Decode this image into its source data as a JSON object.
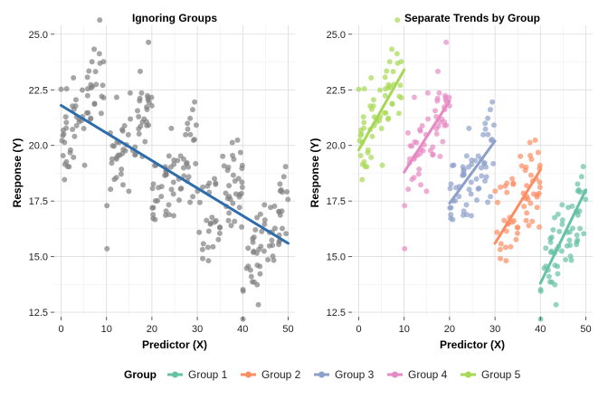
{
  "chart_data": [
    {
      "type": "scatter",
      "title": "Ignoring Groups",
      "xlabel": "Predictor (X)",
      "ylabel": "Response (Y)",
      "xlim": [
        -1.5,
        51.5
      ],
      "ylim": [
        12.3,
        25.4
      ],
      "x_ticks": [
        0,
        10,
        20,
        30,
        40,
        50
      ],
      "y_ticks": [
        12.5,
        15.0,
        17.5,
        20.0,
        22.5,
        25.0
      ],
      "x_tick_labels": [
        "0",
        "10",
        "20",
        "30",
        "40",
        "50"
      ],
      "y_tick_labels": [
        "12.5",
        "15.0",
        "17.5",
        "20.0",
        "22.5",
        "25.0"
      ],
      "grid": true,
      "point_color": "#808080",
      "trend_color": "#2E6DAB",
      "trend": {
        "x": [
          0,
          50
        ],
        "y": [
          21.8,
          15.6
        ]
      }
    },
    {
      "type": "scatter",
      "title": "Separate Trends by Group",
      "xlabel": "Predictor (X)",
      "ylabel": "Response (Y)",
      "xlim": [
        -1.5,
        51.5
      ],
      "ylim": [
        12.3,
        25.4
      ],
      "x_ticks": [
        0,
        10,
        20,
        30,
        40,
        50
      ],
      "y_ticks": [
        12.5,
        15.0,
        17.5,
        20.0,
        22.5,
        25.0
      ],
      "x_tick_labels": [
        "0",
        "10",
        "20",
        "30",
        "40",
        "50"
      ],
      "y_tick_labels": [
        "12.5",
        "15.0",
        "17.5",
        "20.0",
        "22.5",
        "25.0"
      ],
      "grid": true,
      "series": [
        {
          "name": "Group 1",
          "color": "#66C2A5",
          "x_range": [
            40,
            50
          ],
          "trend": {
            "x": [
              40,
              50
            ],
            "y": [
              13.8,
              18.0
            ]
          },
          "spread": 1.0
        },
        {
          "name": "Group 2",
          "color": "#FC8D62",
          "x_range": [
            30,
            40
          ],
          "trend": {
            "x": [
              30,
              40
            ],
            "y": [
              15.6,
              18.9
            ]
          },
          "spread": 1.1
        },
        {
          "name": "Group 3",
          "color": "#8DA0CB",
          "x_range": [
            20,
            30
          ],
          "trend": {
            "x": [
              20,
              30
            ],
            "y": [
              17.4,
              20.2
            ]
          },
          "spread": 1.0
        },
        {
          "name": "Group 4",
          "color": "#E78AC3",
          "x_range": [
            10,
            20
          ],
          "trend": {
            "x": [
              10,
              20
            ],
            "y": [
              18.8,
              22.0
            ]
          },
          "spread": 1.0
        },
        {
          "name": "Group 5",
          "color": "#A6D854",
          "x_range": [
            0,
            10
          ],
          "trend": {
            "x": [
              0,
              10
            ],
            "y": [
              19.8,
              23.4
            ]
          },
          "spread": 1.0
        }
      ]
    }
  ],
  "legend": {
    "title": "Group",
    "position": "bottom",
    "items": [
      {
        "label": "Group 1",
        "color": "#66C2A5"
      },
      {
        "label": "Group 2",
        "color": "#FC8D62"
      },
      {
        "label": "Group 3",
        "color": "#8DA0CB"
      },
      {
        "label": "Group 4",
        "color": "#E78AC3"
      },
      {
        "label": "Group 5",
        "color": "#A6D854"
      }
    ]
  }
}
